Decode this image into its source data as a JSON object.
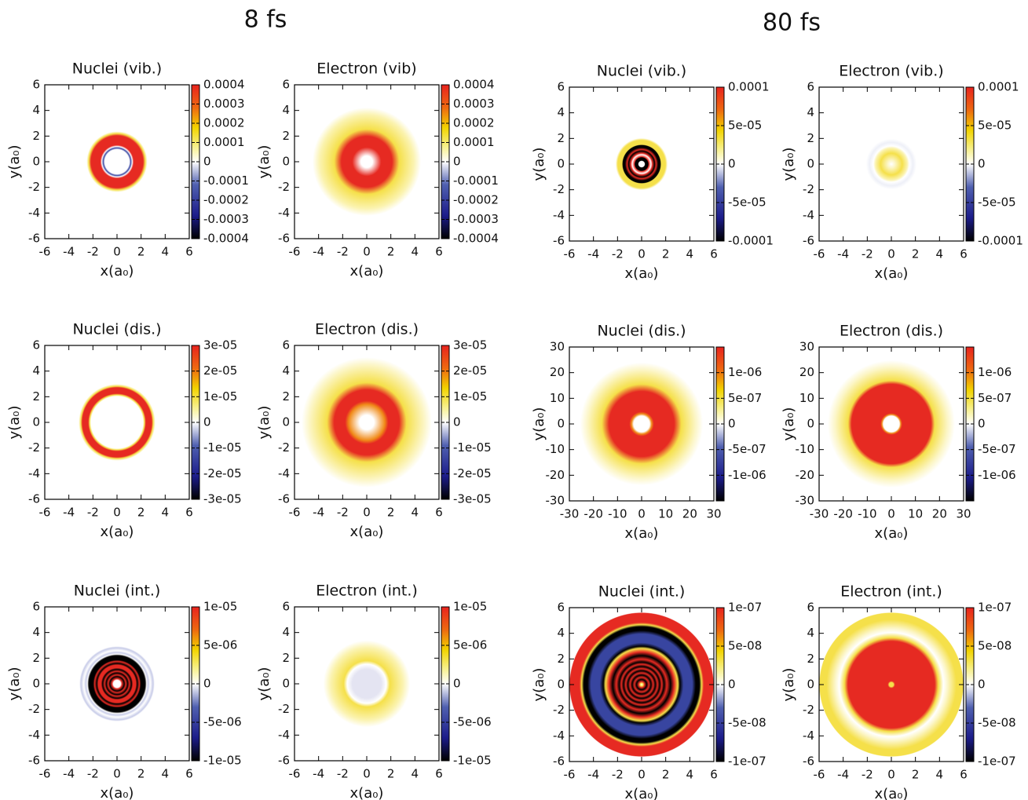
{
  "headings": [
    "8 fs",
    "80 fs"
  ],
  "chart_data": [
    {
      "type": "heatmap",
      "title": "Nuclei (vib.)",
      "xlabel": "x(a₀)",
      "ylabel": "y(a₀)",
      "xlim": [
        -6,
        6
      ],
      "ylim": [
        -6,
        6
      ],
      "xticks": [
        -6,
        -4,
        -2,
        0,
        2,
        4,
        6
      ],
      "yticks": [
        -6,
        -4,
        -2,
        0,
        2,
        4,
        6
      ],
      "zlim": [
        -0.0004,
        0.0004
      ],
      "zticks": [
        0.0004,
        0.0003,
        0.0002,
        0.0001,
        0,
        -0.0001,
        -0.0002,
        -0.0003,
        -0.0004
      ]
    },
    {
      "type": "heatmap",
      "title": "Electron (vib)",
      "xlabel": "x(a₀)",
      "ylabel": "y(a₀)",
      "xlim": [
        -6,
        6
      ],
      "ylim": [
        -6,
        6
      ],
      "xticks": [
        -6,
        -4,
        -2,
        0,
        2,
        4,
        6
      ],
      "yticks": [
        -6,
        -4,
        -2,
        0,
        2,
        4,
        6
      ],
      "zlim": [
        -0.0004,
        0.0004
      ],
      "zticks": [
        0.0004,
        0.0003,
        0.0002,
        0.0001,
        0,
        -0.0001,
        -0.0002,
        -0.0003,
        -0.0004
      ]
    },
    {
      "type": "heatmap",
      "title": "Nuclei (vib.)",
      "xlabel": "x(a₀)",
      "ylabel": "y(a₀)",
      "xlim": [
        -6,
        6
      ],
      "ylim": [
        -6,
        6
      ],
      "xticks": [
        -6,
        -4,
        -2,
        0,
        2,
        4,
        6
      ],
      "yticks": [
        -6,
        -4,
        -2,
        0,
        2,
        4,
        6
      ],
      "zlim": [
        -0.0001,
        0.0001
      ],
      "zticks": [
        0.0001,
        {
          "value": 5e-05,
          "label": "5e-05"
        },
        0,
        {
          "value": -5e-05,
          "label": "-5e-05"
        },
        -0.0001
      ]
    },
    {
      "type": "heatmap",
      "title": "Electron (vib.)",
      "xlabel": "x(a₀)",
      "ylabel": "y(a₀)",
      "xlim": [
        -6,
        6
      ],
      "ylim": [
        -6,
        6
      ],
      "xticks": [
        -6,
        -4,
        -2,
        0,
        2,
        4,
        6
      ],
      "yticks": [
        -6,
        -4,
        -2,
        0,
        2,
        4,
        6
      ],
      "zlim": [
        -0.0001,
        0.0001
      ],
      "zticks": [
        0.0001,
        {
          "value": 5e-05,
          "label": "5e-05"
        },
        0,
        {
          "value": -5e-05,
          "label": "-5e-05"
        },
        -0.0001
      ]
    },
    {
      "type": "heatmap",
      "title": "Nuclei (dis.)",
      "xlabel": "x(a₀)",
      "ylabel": "y(a₀)",
      "xlim": [
        -6,
        6
      ],
      "ylim": [
        -6,
        6
      ],
      "xticks": [
        -6,
        -4,
        -2,
        0,
        2,
        4,
        6
      ],
      "yticks": [
        -6,
        -4,
        -2,
        0,
        2,
        4,
        6
      ],
      "zlim": [
        -3e-05,
        3e-05
      ],
      "zticks": [
        {
          "value": 3e-05,
          "label": "3e-05"
        },
        {
          "value": 2e-05,
          "label": "2e-05"
        },
        {
          "value": 1e-05,
          "label": "1e-05"
        },
        0,
        {
          "value": -1e-05,
          "label": "-1e-05"
        },
        {
          "value": -2e-05,
          "label": "-2e-05"
        },
        {
          "value": -3e-05,
          "label": "-3e-05"
        }
      ]
    },
    {
      "type": "heatmap",
      "title": "Electron (dis.)",
      "xlabel": "x(a₀)",
      "ylabel": "y(a₀)",
      "xlim": [
        -6,
        6
      ],
      "ylim": [
        -6,
        6
      ],
      "xticks": [
        -6,
        -4,
        -2,
        0,
        2,
        4,
        6
      ],
      "yticks": [
        -6,
        -4,
        -2,
        0,
        2,
        4,
        6
      ],
      "zlim": [
        -3e-05,
        3e-05
      ],
      "zticks": [
        {
          "value": 3e-05,
          "label": "3e-05"
        },
        {
          "value": 2e-05,
          "label": "2e-05"
        },
        {
          "value": 1e-05,
          "label": "1e-05"
        },
        0,
        {
          "value": -1e-05,
          "label": "-1e-05"
        },
        {
          "value": -2e-05,
          "label": "-2e-05"
        },
        {
          "value": -3e-05,
          "label": "-3e-05"
        }
      ]
    },
    {
      "type": "heatmap",
      "title": "Nuclei (dis.)",
      "xlabel": "x(a₀)",
      "ylabel": "y(a₀)",
      "xlim": [
        -30,
        30
      ],
      "ylim": [
        -30,
        30
      ],
      "xticks": [
        -30,
        -20,
        -10,
        0,
        10,
        20,
        30
      ],
      "yticks": [
        -30,
        -20,
        -10,
        0,
        10,
        20,
        30
      ],
      "zlim": [
        -1.5e-06,
        1.5e-06
      ],
      "zticks": [
        {
          "value": 1e-06,
          "label": "1e-06"
        },
        {
          "value": 5e-07,
          "label": "5e-07"
        },
        0,
        {
          "value": -5e-07,
          "label": "-5e-07"
        },
        {
          "value": -1e-06,
          "label": "-1e-06"
        }
      ]
    },
    {
      "type": "heatmap",
      "title": "Electron (dis.)",
      "xlabel": "x(a₀)",
      "ylabel": "y(a₀)",
      "xlim": [
        -30,
        30
      ],
      "ylim": [
        -30,
        30
      ],
      "xticks": [
        -30,
        -20,
        -10,
        0,
        10,
        20,
        30
      ],
      "yticks": [
        -30,
        -20,
        -10,
        0,
        10,
        20,
        30
      ],
      "zlim": [
        -1.5e-06,
        1.5e-06
      ],
      "zticks": [
        {
          "value": 1e-06,
          "label": "1e-06"
        },
        {
          "value": 5e-07,
          "label": "5e-07"
        },
        0,
        {
          "value": -5e-07,
          "label": "-5e-07"
        },
        {
          "value": -1e-06,
          "label": "-1e-06"
        }
      ]
    },
    {
      "type": "heatmap",
      "title": "Nuclei (int.)",
      "xlabel": "x(a₀)",
      "ylabel": "y(a₀)",
      "xlim": [
        -6,
        6
      ],
      "ylim": [
        -6,
        6
      ],
      "xticks": [
        -6,
        -4,
        -2,
        0,
        2,
        4,
        6
      ],
      "yticks": [
        -6,
        -4,
        -2,
        0,
        2,
        4,
        6
      ],
      "zlim": [
        -1e-05,
        1e-05
      ],
      "zticks": [
        {
          "value": 1e-05,
          "label": "1e-05"
        },
        {
          "value": 5e-06,
          "label": "5e-06"
        },
        0,
        {
          "value": -5e-06,
          "label": "-5e-06"
        },
        {
          "value": -1e-05,
          "label": "-1e-05"
        }
      ]
    },
    {
      "type": "heatmap",
      "title": "Electron (int.)",
      "xlabel": "x(a₀)",
      "ylabel": "y(a₀)",
      "xlim": [
        -6,
        6
      ],
      "ylim": [
        -6,
        6
      ],
      "xticks": [
        -6,
        -4,
        -2,
        0,
        2,
        4,
        6
      ],
      "yticks": [
        -6,
        -4,
        -2,
        0,
        2,
        4,
        6
      ],
      "zlim": [
        -1e-05,
        1e-05
      ],
      "zticks": [
        {
          "value": 1e-05,
          "label": "1e-05"
        },
        {
          "value": 5e-06,
          "label": "5e-06"
        },
        0,
        {
          "value": -5e-06,
          "label": "-5e-06"
        },
        {
          "value": -1e-05,
          "label": "-1e-05"
        }
      ]
    },
    {
      "type": "heatmap",
      "title": "Nuclei (int.)",
      "xlabel": "x(a₀)",
      "ylabel": "y(a₀)",
      "xlim": [
        -6,
        6
      ],
      "ylim": [
        -6,
        6
      ],
      "xticks": [
        -6,
        -4,
        -2,
        0,
        2,
        4,
        6
      ],
      "yticks": [
        -6,
        -4,
        -2,
        0,
        2,
        4,
        6
      ],
      "zlim": [
        -1e-07,
        1e-07
      ],
      "zticks": [
        {
          "value": 1e-07,
          "label": "1e-07"
        },
        {
          "value": 5e-08,
          "label": "5e-08"
        },
        0,
        {
          "value": -5e-08,
          "label": "-5e-08"
        },
        {
          "value": -1e-07,
          "label": "-1e-07"
        }
      ]
    },
    {
      "type": "heatmap",
      "title": "Electron (int.)",
      "xlabel": "x(a₀)",
      "ylabel": "y(a₀)",
      "xlim": [
        -6,
        6
      ],
      "ylim": [
        -6,
        6
      ],
      "xticks": [
        -6,
        -4,
        -2,
        0,
        2,
        4,
        6
      ],
      "yticks": [
        -6,
        -4,
        -2,
        0,
        2,
        4,
        6
      ],
      "zlim": [
        -1e-07,
        1e-07
      ],
      "zticks": [
        {
          "value": 1e-07,
          "label": "1e-07"
        },
        {
          "value": 5e-08,
          "label": "5e-08"
        },
        0,
        {
          "value": -5e-08,
          "label": "-5e-08"
        },
        {
          "value": -1e-07,
          "label": "-1e-07"
        }
      ]
    }
  ]
}
